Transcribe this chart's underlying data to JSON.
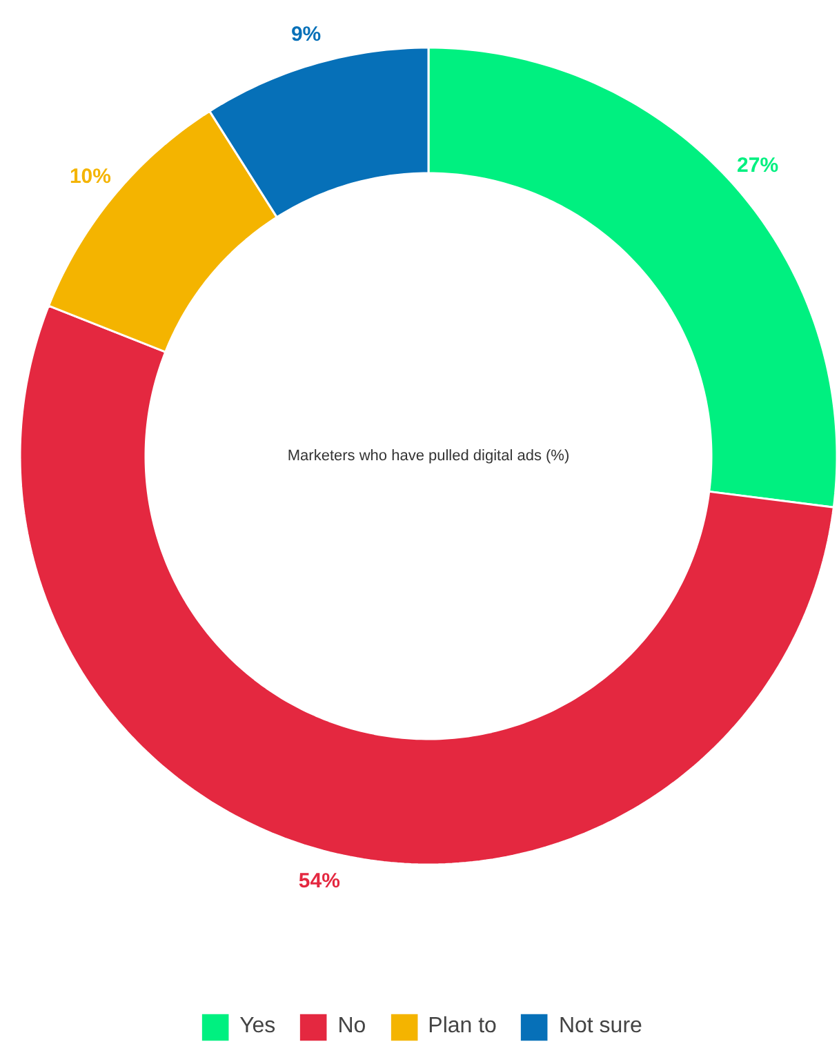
{
  "chart_data": {
    "type": "donut",
    "title": "Marketers who have pulled digital ads (%)",
    "categories": [
      "Yes",
      "No",
      "Plan to",
      "Not sure"
    ],
    "values": [
      27,
      54,
      10,
      9
    ],
    "colors": [
      "#00f080",
      "#e42840",
      "#f4b400",
      "#0670b8"
    ],
    "value_labels": [
      "27%",
      "54%",
      "10%",
      "9%"
    ],
    "legend": "bottom"
  }
}
